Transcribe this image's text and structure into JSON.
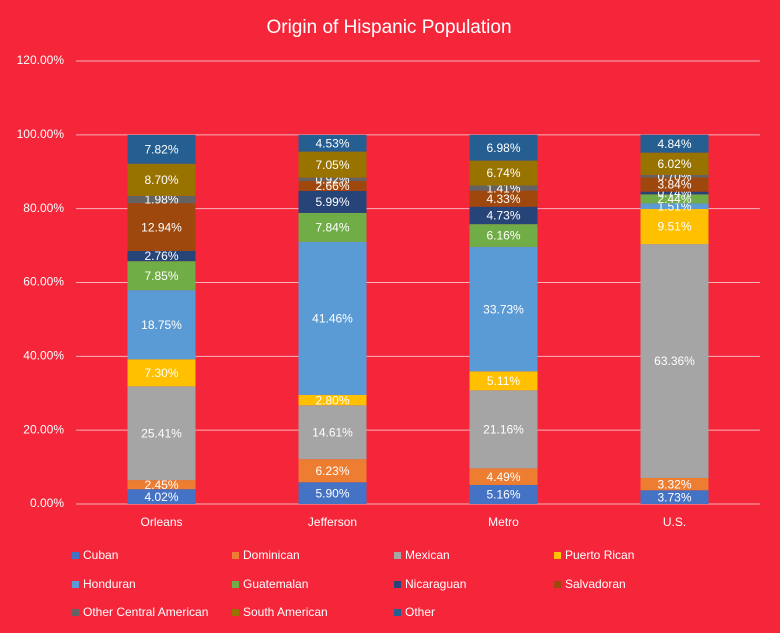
{
  "chart_data": {
    "type": "stacked_bar",
    "title": "Origin of Hispanic Population",
    "categories": [
      "Orleans",
      "Jefferson",
      "Metro",
      "U.S."
    ],
    "ylim": [
      0,
      120
    ],
    "yticks": [
      {
        "value": 0,
        "label": "0.00%"
      },
      {
        "value": 20,
        "label": "20.00%"
      },
      {
        "value": 40,
        "label": "40.00%"
      },
      {
        "value": 60,
        "label": "60.00%"
      },
      {
        "value": 80,
        "label": "80.00%"
      },
      {
        "value": 100,
        "label": "100.00%"
      },
      {
        "value": 120,
        "label": "120.00%"
      }
    ],
    "grid": true,
    "legend": "bottom",
    "series": [
      {
        "name": "Cuban",
        "color": "#4472c4",
        "values": [
          4.02,
          5.9,
          5.16,
          3.73
        ],
        "value_labels": [
          "4.02%",
          "5.90%",
          "5.16%",
          "3.73%"
        ]
      },
      {
        "name": "Dominican",
        "color": "#ed7d31",
        "values": [
          2.45,
          6.23,
          4.49,
          3.32
        ],
        "value_labels": [
          "2.45%",
          "6.23%",
          "4.49%",
          "3.32%"
        ]
      },
      {
        "name": "Mexican",
        "color": "#a5a5a5",
        "values": [
          25.41,
          14.61,
          21.16,
          63.36
        ],
        "value_labels": [
          "25.41%",
          "14.61%",
          "21.16%",
          "63.36%"
        ]
      },
      {
        "name": "Puerto Rican",
        "color": "#ffc000",
        "values": [
          7.3,
          2.8,
          5.11,
          9.51
        ],
        "value_labels": [
          "7.30%",
          "2.80%",
          "5.11%",
          "9.51%"
        ]
      },
      {
        "name": "Honduran",
        "color": "#5b9bd5",
        "values": [
          18.75,
          41.46,
          33.73,
          1.51
        ],
        "value_labels": [
          "18.75%",
          "41.46%",
          "33.73%",
          "1.51%"
        ]
      },
      {
        "name": "Guatemalan",
        "color": "#70ad47",
        "values": [
          7.85,
          7.84,
          6.16,
          2.44
        ],
        "value_labels": [
          "7.85%",
          "7.84%",
          "6.16%",
          "2.44%"
        ]
      },
      {
        "name": "Nicaraguan",
        "color": "#264478",
        "values": [
          2.76,
          5.99,
          4.73,
          0.74
        ],
        "value_labels": [
          "2.76%",
          "5.99%",
          "4.73%",
          "0.74%"
        ]
      },
      {
        "name": "Salvadoran",
        "color": "#9e480e",
        "values": [
          12.94,
          2.66,
          4.33,
          3.84
        ],
        "value_labels": [
          "12.94%",
          "2.66%",
          "4.33%",
          "3.84%"
        ]
      },
      {
        "name": "Other Central American",
        "color": "#636363",
        "values": [
          1.98,
          0.92,
          1.41,
          0.7
        ],
        "value_labels": [
          "1.98%",
          "0.92%",
          "1.41%",
          "0.70%"
        ]
      },
      {
        "name": "South American",
        "color": "#997300",
        "values": [
          8.7,
          7.05,
          6.74,
          6.02
        ],
        "value_labels": [
          "8.70%",
          "7.05%",
          "6.74%",
          "6.02%"
        ]
      },
      {
        "name": "Other",
        "color": "#255e91",
        "values": [
          7.82,
          4.53,
          6.98,
          4.84
        ],
        "value_labels": [
          "7.82%",
          "4.53%",
          "6.98%",
          "4.84%"
        ]
      }
    ]
  }
}
